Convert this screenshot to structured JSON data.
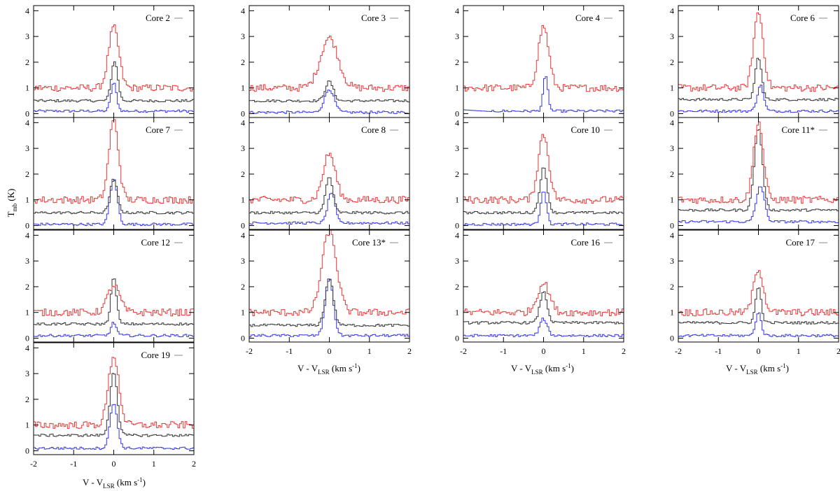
{
  "figure": {
    "ylabel_main": "T",
    "ylabel_sub": "mb",
    "ylabel_unit": " (K)",
    "xlabel_main": "V - V",
    "xlabel_sub": "LSR",
    "xlabel_unit": " (km s",
    "xlabel_exp": "-1",
    "xlabel_close": ")"
  },
  "chart_data": {
    "type": "line",
    "style": "step",
    "xlim": [
      -2,
      2
    ],
    "ylim": [
      -0.15,
      4.2
    ],
    "xticks": [
      -2,
      -1,
      0,
      1,
      2
    ],
    "yticks": [
      0,
      1,
      2,
      3,
      4
    ],
    "xlabel": "V - V_LSR (km s^-1)",
    "ylabel": "T_mb (K)",
    "series_colors": {
      "red": "#ee3333",
      "black": "#333333",
      "blue": "#3333ee"
    },
    "panels": [
      {
        "id": "core-2",
        "title": "Core 2",
        "red": {
          "base": 1.0,
          "peak": 3.35,
          "width": 0.13,
          "center": 0.0
        },
        "black": {
          "base": 0.5,
          "peak": 2.05,
          "width": 0.08,
          "center": 0.02
        },
        "blue": {
          "base": 0.1,
          "peak": 1.2,
          "width": 0.07,
          "center": 0.0
        }
      },
      {
        "id": "core-3",
        "title": "Core 3",
        "red": {
          "base": 1.0,
          "peak": 2.95,
          "width": 0.22,
          "center": 0.0
        },
        "black": {
          "base": 0.5,
          "peak": 1.25,
          "width": 0.1,
          "center": 0.0
        },
        "blue": {
          "base": 0.05,
          "peak": 0.95,
          "width": 0.12,
          "center": 0.0
        }
      },
      {
        "id": "core-4",
        "title": "Core 4",
        "red": {
          "base": 1.0,
          "peak": 3.4,
          "width": 0.13,
          "center": 0.0
        },
        "black": null,
        "blue": {
          "base": 0.1,
          "peak": 1.45,
          "width": 0.06,
          "center": 0.05
        }
      },
      {
        "id": "core-6",
        "title": "Core 6",
        "red": {
          "base": 1.0,
          "peak": 3.95,
          "width": 0.12,
          "center": 0.0
        },
        "black": {
          "base": 0.55,
          "peak": 2.2,
          "width": 0.08,
          "center": 0.0
        },
        "blue": {
          "base": 0.1,
          "peak": 1.1,
          "width": 0.08,
          "center": 0.05
        }
      },
      {
        "id": "core-7",
        "title": "Core 7",
        "red": {
          "base": 1.0,
          "peak": 4.1,
          "width": 0.12,
          "center": 0.0
        },
        "black": {
          "base": 0.5,
          "peak": 1.8,
          "width": 0.09,
          "center": 0.0
        },
        "blue": {
          "base": 0.05,
          "peak": 1.8,
          "width": 0.09,
          "center": 0.0
        }
      },
      {
        "id": "core-8",
        "title": "Core 8",
        "red": {
          "base": 1.0,
          "peak": 2.8,
          "width": 0.15,
          "center": 0.0
        },
        "black": {
          "base": 0.5,
          "peak": 1.9,
          "width": 0.09,
          "center": 0.0
        },
        "blue": {
          "base": 0.1,
          "peak": 1.3,
          "width": 0.09,
          "center": 0.05
        }
      },
      {
        "id": "core-10",
        "title": "Core 10",
        "red": {
          "base": 1.0,
          "peak": 3.55,
          "width": 0.13,
          "center": 0.0
        },
        "black": {
          "base": 0.5,
          "peak": 2.25,
          "width": 0.09,
          "center": 0.0
        },
        "blue": {
          "base": 0.05,
          "peak": 1.4,
          "width": 0.07,
          "center": 0.0
        }
      },
      {
        "id": "core-11",
        "title": "Core 11*",
        "red": {
          "base": 1.0,
          "peak": 4.05,
          "width": 0.12,
          "center": 0.0
        },
        "black": {
          "base": 0.6,
          "peak": 3.8,
          "width": 0.1,
          "center": 0.0
        },
        "blue": {
          "base": 0.15,
          "peak": 1.55,
          "width": 0.1,
          "center": 0.05
        }
      },
      {
        "id": "core-12",
        "title": "Core 12",
        "red": {
          "base": 1.0,
          "peak": 2.05,
          "width": 0.15,
          "center": 0.0
        },
        "black": {
          "base": 0.55,
          "peak": 2.35,
          "width": 0.07,
          "center": 0.0
        },
        "blue": {
          "base": 0.1,
          "peak": 0.6,
          "width": 0.07,
          "center": 0.0
        }
      },
      {
        "id": "core-13",
        "title": "Core 13*",
        "red": {
          "base": 1.0,
          "peak": 4.15,
          "width": 0.18,
          "center": 0.0
        },
        "black": {
          "base": 0.5,
          "peak": 2.35,
          "width": 0.1,
          "center": 0.0
        },
        "blue": {
          "base": 0.1,
          "peak": 2.3,
          "width": 0.1,
          "center": 0.0
        }
      },
      {
        "id": "core-16",
        "title": "Core 16",
        "red": {
          "base": 1.0,
          "peak": 2.15,
          "width": 0.15,
          "center": 0.0
        },
        "black": {
          "base": 0.6,
          "peak": 1.8,
          "width": 0.09,
          "center": 0.0
        },
        "blue": {
          "base": 0.1,
          "peak": 0.75,
          "width": 0.09,
          "center": 0.0
        }
      },
      {
        "id": "core-17",
        "title": "Core 17",
        "red": {
          "base": 1.0,
          "peak": 2.7,
          "width": 0.12,
          "center": 0.0
        },
        "black": {
          "base": 0.6,
          "peak": 2.0,
          "width": 0.07,
          "center": 0.0
        },
        "blue": {
          "base": 0.1,
          "peak": 1.0,
          "width": 0.07,
          "center": 0.0
        }
      },
      {
        "id": "core-19",
        "title": "Core 19",
        "red": {
          "base": 1.0,
          "peak": 3.7,
          "width": 0.13,
          "center": 0.0
        },
        "black": {
          "base": 0.6,
          "peak": 3.1,
          "width": 0.09,
          "center": 0.0
        },
        "blue": {
          "base": 0.1,
          "peak": 1.85,
          "width": 0.09,
          "center": 0.0
        }
      }
    ]
  }
}
